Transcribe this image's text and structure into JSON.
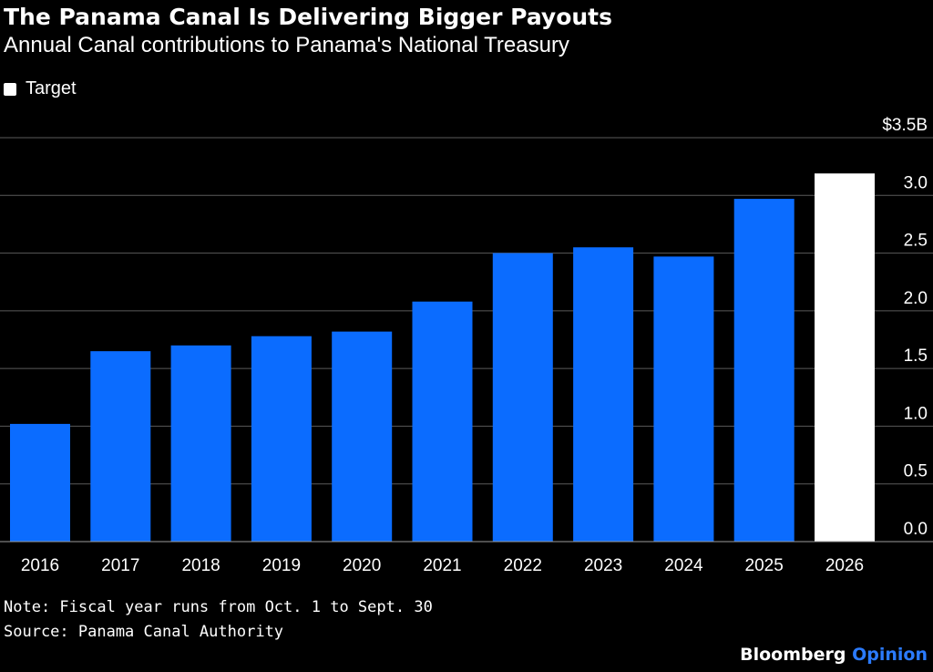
{
  "chart_data": {
    "type": "bar",
    "title": "The Panama Canal Is Delivering Bigger Payouts",
    "subtitle": "Annual Canal contributions to Panama's National Treasury",
    "legend": [
      {
        "name": "Target",
        "color": "#ffffff"
      }
    ],
    "categories": [
      "2016",
      "2017",
      "2018",
      "2019",
      "2020",
      "2021",
      "2022",
      "2023",
      "2024",
      "2025",
      "2026"
    ],
    "values": [
      1.02,
      1.65,
      1.7,
      1.78,
      1.82,
      2.08,
      2.5,
      2.55,
      2.47,
      2.97,
      3.19
    ],
    "target_flags": [
      false,
      false,
      false,
      false,
      false,
      false,
      false,
      false,
      false,
      false,
      true
    ],
    "ylim": [
      0,
      3.5
    ],
    "y_ticks": [
      0.0,
      0.5,
      1.0,
      1.5,
      2.0,
      2.5,
      3.0,
      3.5
    ],
    "y_tick_labels": [
      "0.0",
      "0.5",
      "1.0",
      "1.5",
      "2.0",
      "2.5",
      "3.0",
      "$3.5B"
    ],
    "y_axis_side": "right",
    "grid": true,
    "legend_position": "top-left",
    "colors": {
      "actual": "#0b6cff",
      "target": "#ffffff",
      "grid": "#5a5a5a",
      "background": "#000000"
    }
  },
  "notes": {
    "note": "Note: Fiscal year runs from Oct. 1 to Sept. 30",
    "source": "Source: Panama Canal Authority"
  },
  "brand": {
    "name": "Bloomberg",
    "suffix": "Opinion"
  }
}
